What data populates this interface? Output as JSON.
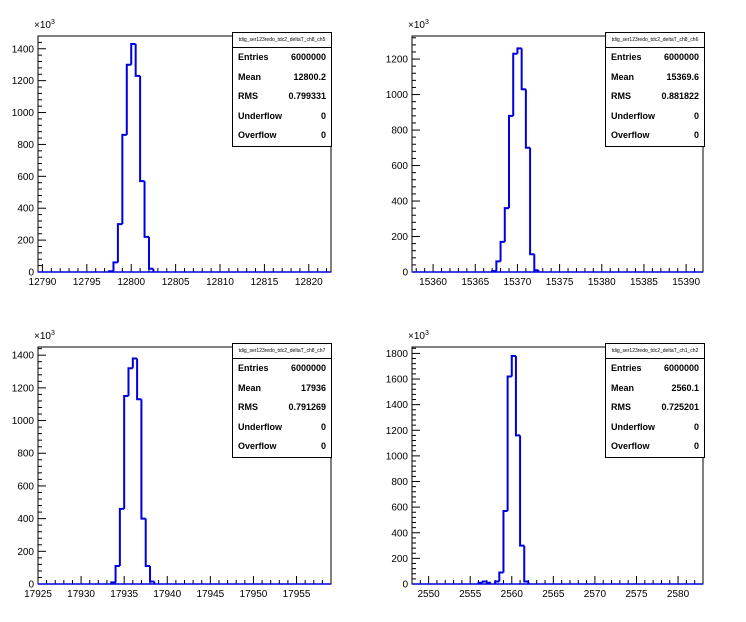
{
  "chart_data": [
    {
      "type": "histogram",
      "title": "tdig_ser123redo_tdc2_deltaT_ch8_ch5",
      "y_exponent_label": "×10",
      "y_exponent_power": "3",
      "xlim": [
        12789.5,
        12822.5
      ],
      "ylim": [
        0,
        1480
      ],
      "x_ticks": [
        "12790",
        "12795",
        "12800",
        "12805",
        "12810",
        "12815",
        "12820"
      ],
      "x_tick_values": [
        12790,
        12795,
        12800,
        12805,
        12810,
        12815,
        12820
      ],
      "y_ticks": [
        "0",
        "200",
        "400",
        "600",
        "800",
        "1000",
        "1200",
        "1400"
      ],
      "y_tick_values": [
        0,
        200,
        400,
        600,
        800,
        1000,
        1200,
        1400
      ],
      "bin_width": 0.5,
      "bins": [
        {
          "x": 12797.5,
          "y": 5
        },
        {
          "x": 12798.0,
          "y": 60
        },
        {
          "x": 12798.5,
          "y": 300
        },
        {
          "x": 12799.0,
          "y": 860
        },
        {
          "x": 12799.5,
          "y": 1300
        },
        {
          "x": 12800.0,
          "y": 1430
        },
        {
          "x": 12800.5,
          "y": 1230
        },
        {
          "x": 12801.0,
          "y": 570
        },
        {
          "x": 12801.5,
          "y": 220
        },
        {
          "x": 12802.0,
          "y": 20
        }
      ],
      "stats": [
        {
          "label": "Entries",
          "value": "6000000"
        },
        {
          "label": "Mean",
          "value": "12800.2"
        },
        {
          "label": "RMS",
          "value": "0.799331"
        },
        {
          "label": "Underflow",
          "value": "0"
        },
        {
          "label": "Overflow",
          "value": "0"
        }
      ],
      "line_color": "#0000dd"
    },
    {
      "type": "histogram",
      "title": "tdig_ser123redo_tdc2_deltaT_ch8_ch6",
      "y_exponent_label": "×10",
      "y_exponent_power": "3",
      "xlim": [
        15357.5,
        15392
      ],
      "ylim": [
        0,
        1330
      ],
      "x_ticks": [
        "15360",
        "15365",
        "15370",
        "15375",
        "15380",
        "15385",
        "15390"
      ],
      "x_tick_values": [
        15360,
        15365,
        15370,
        15375,
        15380,
        15385,
        15390
      ],
      "y_ticks": [
        "0",
        "200",
        "400",
        "600",
        "800",
        "1000",
        "1200"
      ],
      "y_tick_values": [
        0,
        200,
        400,
        600,
        800,
        1000,
        1200
      ],
      "bin_width": 0.5,
      "bins": [
        {
          "x": 15367.0,
          "y": 5
        },
        {
          "x": 15367.5,
          "y": 60
        },
        {
          "x": 15368.0,
          "y": 170
        },
        {
          "x": 15368.5,
          "y": 360
        },
        {
          "x": 15369.0,
          "y": 880
        },
        {
          "x": 15369.5,
          "y": 1230
        },
        {
          "x": 15370.0,
          "y": 1260
        },
        {
          "x": 15370.5,
          "y": 1030
        },
        {
          "x": 15371.0,
          "y": 700
        },
        {
          "x": 15371.5,
          "y": 100
        },
        {
          "x": 15372.0,
          "y": 10
        }
      ],
      "stats": [
        {
          "label": "Entries",
          "value": "6000000"
        },
        {
          "label": "Mean",
          "value": "15369.6"
        },
        {
          "label": "RMS",
          "value": "0.881822"
        },
        {
          "label": "Underflow",
          "value": "0"
        },
        {
          "label": "Overflow",
          "value": "0"
        }
      ],
      "line_color": "#0000dd"
    },
    {
      "type": "histogram",
      "title": "tdig_ser123redo_tdc2_deltaT_ch8_ch7",
      "y_exponent_label": "×10",
      "y_exponent_power": "3",
      "xlim": [
        17925,
        17959
      ],
      "ylim": [
        0,
        1450
      ],
      "x_ticks": [
        "17925",
        "17930",
        "17935",
        "17940",
        "17945",
        "17950",
        "17955"
      ],
      "x_tick_values": [
        17925,
        17930,
        17935,
        17940,
        17945,
        17950,
        17955
      ],
      "y_ticks": [
        "0",
        "200",
        "400",
        "600",
        "800",
        "1000",
        "1200",
        "1400"
      ],
      "y_tick_values": [
        0,
        200,
        400,
        600,
        800,
        1000,
        1200,
        1400
      ],
      "bin_width": 0.5,
      "bins": [
        {
          "x": 17933.5,
          "y": 10
        },
        {
          "x": 17934.0,
          "y": 110
        },
        {
          "x": 17934.5,
          "y": 460
        },
        {
          "x": 17935.0,
          "y": 1150
        },
        {
          "x": 17935.5,
          "y": 1320
        },
        {
          "x": 17936.0,
          "y": 1380
        },
        {
          "x": 17936.5,
          "y": 1130
        },
        {
          "x": 17937.0,
          "y": 400
        },
        {
          "x": 17937.5,
          "y": 110
        },
        {
          "x": 17938.0,
          "y": 15
        }
      ],
      "stats": [
        {
          "label": "Entries",
          "value": "6000000"
        },
        {
          "label": "Mean",
          "value": "17936"
        },
        {
          "label": "RMS",
          "value": "0.791269"
        },
        {
          "label": "Underflow",
          "value": "0"
        },
        {
          "label": "Overflow",
          "value": "0"
        }
      ],
      "line_color": "#0000dd"
    },
    {
      "type": "histogram",
      "title": "tdig_ser123redo_tdc2_deltaT_ch1_ch2",
      "y_exponent_label": "×10",
      "y_exponent_power": "3",
      "xlim": [
        2548,
        2583
      ],
      "ylim": [
        0,
        1850
      ],
      "x_ticks": [
        "2550",
        "2555",
        "2560",
        "2565",
        "2570",
        "2575",
        "2580"
      ],
      "x_tick_values": [
        2550,
        2555,
        2560,
        2565,
        2570,
        2575,
        2580
      ],
      "y_ticks": [
        "0",
        "200",
        "400",
        "600",
        "800",
        "1000",
        "1200",
        "1400",
        "1600",
        "1800"
      ],
      "y_tick_values": [
        0,
        200,
        400,
        600,
        800,
        1000,
        1200,
        1400,
        1600,
        1800
      ],
      "bin_width": 0.5,
      "bins": [
        {
          "x": 2556.0,
          "y": 10
        },
        {
          "x": 2556.5,
          "y": 20
        },
        {
          "x": 2557.0,
          "y": 10
        },
        {
          "x": 2558.0,
          "y": 20
        },
        {
          "x": 2558.5,
          "y": 90
        },
        {
          "x": 2559.0,
          "y": 570
        },
        {
          "x": 2559.5,
          "y": 1620
        },
        {
          "x": 2560.0,
          "y": 1780
        },
        {
          "x": 2560.5,
          "y": 1160
        },
        {
          "x": 2561.0,
          "y": 300
        },
        {
          "x": 2561.5,
          "y": 20
        }
      ],
      "stats": [
        {
          "label": "Entries",
          "value": "6000000"
        },
        {
          "label": "Mean",
          "value": "2560.1"
        },
        {
          "label": "RMS",
          "value": "0.725201"
        },
        {
          "label": "Underflow",
          "value": "0"
        },
        {
          "label": "Overflow",
          "value": "0"
        }
      ],
      "line_color": "#0000dd"
    }
  ]
}
